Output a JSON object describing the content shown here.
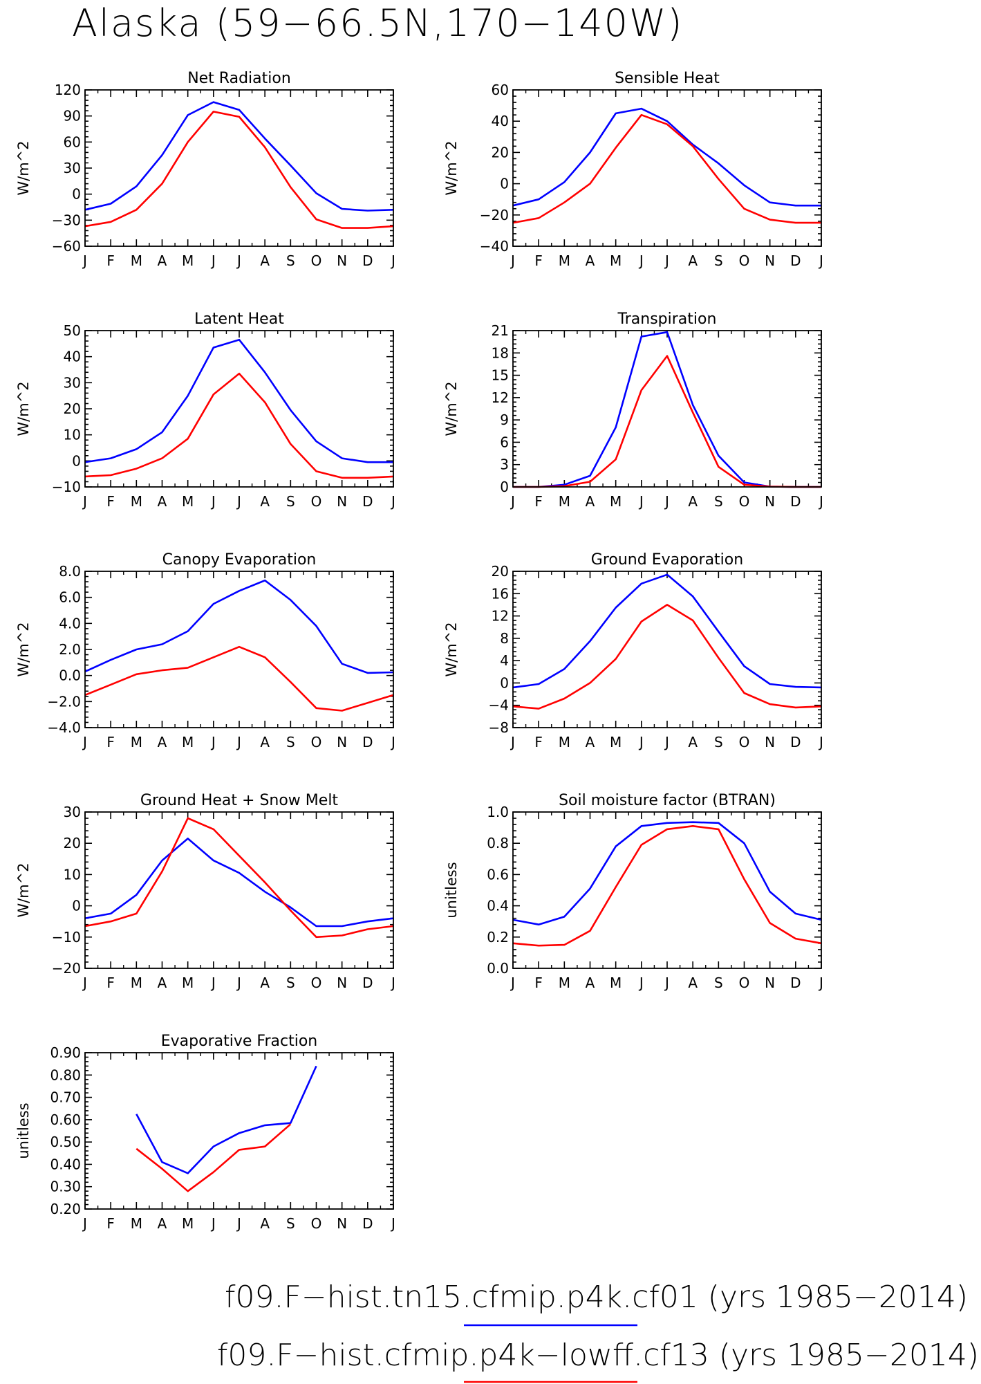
{
  "title": "Alaska (59−66.5N,170−140W)",
  "legend": [
    {
      "label": "f09.F−hist.tn15.cfmip.p4k.cf01 (yrs 1985−2014)",
      "color": "#0000ff"
    },
    {
      "label": "f09.F−hist.cfmip.p4k−lowff.cf13 (yrs 1985−2014)",
      "color": "#ff0000"
    }
  ],
  "series_colors": [
    "#0000ff",
    "#ff0000"
  ],
  "chart_data": [
    {
      "type": "line",
      "title": "Net Radiation",
      "ylabel": "W/m^2",
      "categories": [
        "J",
        "F",
        "M",
        "A",
        "M",
        "J",
        "J",
        "A",
        "S",
        "O",
        "N",
        "D",
        "J"
      ],
      "ylim": [
        -60,
        120
      ],
      "yticks": [
        -60,
        -30,
        0,
        30,
        60,
        90,
        120
      ],
      "ytick_labels": [
        "−60",
        "−30",
        "0",
        "30",
        "60",
        "90",
        "120"
      ],
      "series": [
        {
          "values": [
            -18,
            -11,
            9,
            45,
            91,
            106,
            97,
            64,
            33,
            1,
            -17,
            -19,
            -18
          ]
        },
        {
          "values": [
            -37,
            -32,
            -18,
            12,
            60,
            95,
            89,
            54,
            8,
            -29,
            -39,
            -39,
            -37
          ]
        }
      ]
    },
    {
      "type": "line",
      "title": "Sensible Heat",
      "ylabel": "W/m^2",
      "categories": [
        "J",
        "F",
        "M",
        "A",
        "M",
        "J",
        "J",
        "A",
        "S",
        "O",
        "N",
        "D",
        "J"
      ],
      "ylim": [
        -40,
        60
      ],
      "yticks": [
        -40,
        -20,
        0,
        20,
        40,
        60
      ],
      "ytick_labels": [
        "−40",
        "−20",
        "0",
        "20",
        "40",
        "60"
      ],
      "series": [
        {
          "values": [
            -14,
            -10,
            1,
            20,
            45,
            48,
            40,
            25,
            13,
            -1,
            -12,
            -14,
            -14
          ]
        },
        {
          "values": [
            -25,
            -22,
            -12,
            0,
            23,
            44,
            38,
            24,
            3,
            -16,
            -23,
            -25,
            -25
          ]
        }
      ]
    },
    {
      "type": "line",
      "title": "Latent Heat",
      "ylabel": "W/m^2",
      "categories": [
        "J",
        "F",
        "M",
        "A",
        "M",
        "J",
        "J",
        "A",
        "S",
        "O",
        "N",
        "D",
        "J"
      ],
      "ylim": [
        -10,
        50
      ],
      "yticks": [
        -10,
        0,
        10,
        20,
        30,
        40,
        50
      ],
      "ytick_labels": [
        "−10",
        "0",
        "10",
        "20",
        "30",
        "40",
        "50"
      ],
      "series": [
        {
          "values": [
            -0.5,
            1,
            4.5,
            11,
            25,
            43.5,
            46.5,
            34,
            19.5,
            7.5,
            1,
            -0.5,
            -0.5
          ]
        },
        {
          "values": [
            -6,
            -5.5,
            -3,
            1,
            8.5,
            25.5,
            33.5,
            22.5,
            6.5,
            -4,
            -6.5,
            -6.5,
            -6
          ]
        }
      ]
    },
    {
      "type": "line",
      "title": "Transpiration",
      "ylabel": "W/m^2",
      "categories": [
        "J",
        "F",
        "M",
        "A",
        "M",
        "J",
        "J",
        "A",
        "S",
        "O",
        "N",
        "D",
        "J"
      ],
      "ylim": [
        0,
        21
      ],
      "yticks": [
        0,
        3,
        6,
        9,
        12,
        15,
        18,
        21
      ],
      "ytick_labels": [
        "0",
        "3",
        "6",
        "9",
        "12",
        "15",
        "18",
        "21"
      ],
      "series": [
        {
          "values": [
            0,
            0,
            0.3,
            1.5,
            8,
            20.2,
            20.8,
            11,
            4.2,
            0.6,
            0.05,
            0,
            0
          ]
        },
        {
          "values": [
            0,
            0,
            0.1,
            0.7,
            3.7,
            13,
            17.6,
            10,
            2.7,
            0.3,
            0.05,
            0,
            0
          ]
        }
      ]
    },
    {
      "type": "line",
      "title": "Canopy Evaporation",
      "ylabel": "W/m^2",
      "categories": [
        "J",
        "F",
        "M",
        "A",
        "M",
        "J",
        "J",
        "A",
        "S",
        "O",
        "N",
        "D",
        "J"
      ],
      "ylim": [
        -4,
        8
      ],
      "yticks": [
        -4,
        -2,
        0,
        2,
        4,
        6,
        8
      ],
      "ytick_labels": [
        "−4.0",
        "−2.0",
        "0.0",
        "2.0",
        "4.0",
        "6.0",
        "8.0"
      ],
      "series": [
        {
          "values": [
            0.3,
            1.2,
            2.0,
            2.4,
            3.4,
            5.5,
            6.5,
            7.3,
            5.8,
            3.8,
            0.9,
            0.2,
            0.25
          ]
        },
        {
          "values": [
            -1.5,
            -0.7,
            0.1,
            0.4,
            0.6,
            1.4,
            2.2,
            1.4,
            -0.5,
            -2.5,
            -2.7,
            -2.1,
            -1.5
          ]
        }
      ]
    },
    {
      "type": "line",
      "title": "Ground Evaporation",
      "ylabel": "W/m^2",
      "categories": [
        "J",
        "F",
        "M",
        "A",
        "M",
        "J",
        "J",
        "A",
        "S",
        "O",
        "N",
        "D",
        "J"
      ],
      "ylim": [
        -8,
        20
      ],
      "yticks": [
        -8,
        -4,
        0,
        4,
        8,
        12,
        16,
        20
      ],
      "ytick_labels": [
        "−8",
        "−4",
        "0",
        "4",
        "8",
        "12",
        "16",
        "20"
      ],
      "series": [
        {
          "values": [
            -0.8,
            -0.2,
            2.5,
            7.5,
            13.5,
            17.8,
            19.4,
            15.5,
            9.2,
            3,
            -0.2,
            -0.7,
            -0.8
          ]
        },
        {
          "values": [
            -4.2,
            -4.6,
            -2.8,
            0,
            4.3,
            11,
            14,
            11.2,
            4.5,
            -1.8,
            -3.8,
            -4.4,
            -4.2
          ]
        }
      ]
    },
    {
      "type": "line",
      "title": "Ground Heat + Snow Melt",
      "ylabel": "W/m^2",
      "categories": [
        "J",
        "F",
        "M",
        "A",
        "M",
        "J",
        "J",
        "A",
        "S",
        "O",
        "N",
        "D",
        "J"
      ],
      "ylim": [
        -20,
        30
      ],
      "yticks": [
        -20,
        -10,
        0,
        10,
        20,
        30
      ],
      "ytick_labels": [
        "−20",
        "−10",
        "0",
        "10",
        "20",
        "30"
      ],
      "series": [
        {
          "values": [
            -4,
            -2.5,
            3.5,
            14.5,
            21.5,
            14.5,
            10.5,
            4.5,
            -0.5,
            -6.5,
            -6.5,
            -5,
            -4
          ]
        },
        {
          "values": [
            -6.5,
            -5,
            -2.5,
            11,
            28,
            24.5,
            16,
            7.5,
            -1.5,
            -10,
            -9.5,
            -7.5,
            -6.5
          ]
        }
      ]
    },
    {
      "type": "line",
      "title": "Soil moisture factor (BTRAN)",
      "ylabel": "unitless",
      "categories": [
        "J",
        "F",
        "M",
        "A",
        "M",
        "J",
        "J",
        "A",
        "S",
        "O",
        "N",
        "D",
        "J"
      ],
      "ylim": [
        0,
        1
      ],
      "yticks": [
        0,
        0.2,
        0.4,
        0.6,
        0.8,
        1.0
      ],
      "ytick_labels": [
        "0.0",
        "0.2",
        "0.4",
        "0.6",
        "0.8",
        "1.0"
      ],
      "series": [
        {
          "values": [
            0.31,
            0.28,
            0.33,
            0.51,
            0.78,
            0.91,
            0.93,
            0.935,
            0.93,
            0.8,
            0.49,
            0.35,
            0.31
          ]
        },
        {
          "values": [
            0.16,
            0.145,
            0.15,
            0.24,
            0.52,
            0.79,
            0.89,
            0.91,
            0.89,
            0.57,
            0.29,
            0.19,
            0.16
          ]
        }
      ]
    },
    {
      "type": "line",
      "title": "Evaporative Fraction",
      "ylabel": "unitless",
      "categories": [
        "J",
        "F",
        "M",
        "A",
        "M",
        "J",
        "J",
        "A",
        "S",
        "O",
        "N",
        "D",
        "J"
      ],
      "ylim": [
        0.2,
        0.9
      ],
      "yticks": [
        0.2,
        0.3,
        0.4,
        0.5,
        0.6,
        0.7,
        0.8,
        0.9
      ],
      "ytick_labels": [
        "0.20",
        "0.30",
        "0.40",
        "0.50",
        "0.60",
        "0.70",
        "0.80",
        "0.90"
      ],
      "series": [
        {
          "values": [
            null,
            null,
            0.625,
            0.41,
            0.36,
            0.48,
            0.54,
            0.575,
            0.585,
            0.84,
            null,
            null,
            null
          ]
        },
        {
          "values": [
            null,
            null,
            0.47,
            0.38,
            0.28,
            0.365,
            0.465,
            0.48,
            0.58,
            null,
            null,
            null,
            null
          ]
        }
      ]
    }
  ]
}
